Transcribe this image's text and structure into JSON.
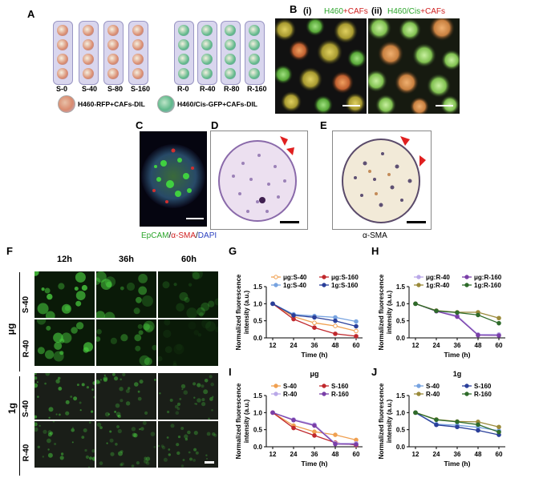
{
  "panels": {
    "A": {
      "label": "A",
      "s_groups": [
        "S-0",
        "S-40",
        "S-80",
        "S-160"
      ],
      "r_groups": [
        "R-0",
        "R-40",
        "R-80",
        "R-160"
      ],
      "legend_s": "H460-RFP+CAFs-DIL",
      "legend_r": "H460/Cis-GFP+CAFs-DIL",
      "colors": {
        "s_sphere": "#d98b6f",
        "r_sphere": "#5fb88a",
        "well": "#d9d6ee"
      }
    },
    "B": {
      "label": "B",
      "sub_i": "(i)",
      "sub_ii": "(ii)",
      "title_i_a": "H460",
      "title_i_plus": "+",
      "title_i_b": "CAFs",
      "title_ii_a": "H460/Cis",
      "title_ii_plus": "+",
      "title_ii_b": "CAFs"
    },
    "C": {
      "label": "C",
      "cap_a": "EpCAM",
      "cap_sep1": "/",
      "cap_b": "α-SMA",
      "cap_sep2": "/",
      "cap_c": "DAPI"
    },
    "D": {
      "label": "D"
    },
    "E": {
      "label": "E",
      "caption": "α-SMA"
    },
    "F": {
      "label": "F",
      "times": [
        "12h",
        "36h",
        "60h"
      ],
      "group_ug": "μg",
      "group_1g": "1g",
      "rows": [
        "S-40",
        "R-40",
        "S-40",
        "R-40"
      ]
    }
  },
  "chart_data": [
    {
      "panel": "G",
      "type": "line",
      "ylabel_1": "Normalized fluorescence",
      "ylabel_2": "intensity (a.u.)",
      "xlabel": "Time (h)",
      "x": [
        12,
        24,
        36,
        48,
        60
      ],
      "ylim": [
        0.0,
        1.5
      ],
      "yticks": [
        "0.0",
        "0.5",
        "1.0",
        "1.5"
      ],
      "xticks": [
        "12",
        "24",
        "36",
        "48",
        "60"
      ],
      "legend": "top",
      "series": [
        {
          "name": "μg:S-40",
          "color": "#f0a050",
          "marker": "circle-open",
          "values": [
            1.0,
            0.62,
            0.44,
            0.35,
            0.2
          ]
        },
        {
          "name": "μg:S-160",
          "color": "#c0282d",
          "marker": "circle",
          "values": [
            1.0,
            0.55,
            0.3,
            0.12,
            0.05
          ]
        },
        {
          "name": "1g:S-40",
          "color": "#77a3e0",
          "marker": "circle",
          "values": [
            1.0,
            0.69,
            0.64,
            0.6,
            0.48
          ]
        },
        {
          "name": "1g:S-160",
          "color": "#2a3f9a",
          "marker": "circle",
          "values": [
            1.0,
            0.66,
            0.6,
            0.5,
            0.34
          ]
        }
      ]
    },
    {
      "panel": "H",
      "type": "line",
      "ylabel_1": "Normalized fluorescence",
      "ylabel_2": "intensity (a.u.)",
      "xlabel": "Time (h)",
      "x": [
        12,
        24,
        36,
        48,
        60
      ],
      "ylim": [
        0.0,
        1.5
      ],
      "yticks": [
        "0.0",
        "0.5",
        "1.0",
        "1.5"
      ],
      "xticks": [
        "12",
        "24",
        "36",
        "48",
        "60"
      ],
      "legend": "top",
      "series": [
        {
          "name": "μg:R-40",
          "color": "#b9a8e8",
          "marker": "circle",
          "values": [
            1.0,
            0.8,
            0.65,
            0.1,
            0.1
          ]
        },
        {
          "name": "μg:R-160",
          "color": "#7a3fa8",
          "marker": "circle",
          "values": [
            1.0,
            0.78,
            0.62,
            0.08,
            0.07
          ]
        },
        {
          "name": "1g:R-40",
          "color": "#9a8a3a",
          "marker": "circle",
          "values": [
            1.0,
            0.8,
            0.75,
            0.75,
            0.58
          ]
        },
        {
          "name": "1g:R-160",
          "color": "#2e6b2a",
          "marker": "circle",
          "values": [
            1.0,
            0.79,
            0.74,
            0.67,
            0.43
          ]
        }
      ]
    },
    {
      "panel": "I",
      "type": "line",
      "title": "μg",
      "ylabel_1": "Normalized fluorescence",
      "ylabel_2": "intensity (a.u.)",
      "xlabel": "Time (h)",
      "x": [
        12,
        24,
        36,
        48,
        60
      ],
      "ylim": [
        0.0,
        1.5
      ],
      "yticks": [
        "0.0",
        "0.5",
        "1.0",
        "1.5"
      ],
      "xticks": [
        "12",
        "24",
        "36",
        "48",
        "60"
      ],
      "legend": "top",
      "series": [
        {
          "name": "S-40",
          "color": "#f0a050",
          "marker": "circle",
          "values": [
            1.0,
            0.62,
            0.44,
            0.35,
            0.2
          ]
        },
        {
          "name": "S-160",
          "color": "#c0282d",
          "marker": "circle",
          "values": [
            1.0,
            0.55,
            0.33,
            0.12,
            0.05
          ]
        },
        {
          "name": "R-40",
          "color": "#b9a8e8",
          "marker": "circle",
          "values": [
            1.0,
            0.8,
            0.65,
            0.1,
            0.1
          ]
        },
        {
          "name": "R-160",
          "color": "#7a3fa8",
          "marker": "circle",
          "values": [
            1.0,
            0.78,
            0.62,
            0.08,
            0.07
          ]
        }
      ]
    },
    {
      "panel": "J",
      "type": "line",
      "title": "1g",
      "ylabel_1": "Normalized fluorescence",
      "ylabel_2": "intensity (a.u.)",
      "xlabel": "Time (h)",
      "x": [
        12,
        24,
        36,
        48,
        60
      ],
      "ylim": [
        0.0,
        1.5
      ],
      "yticks": [
        "0.0",
        "0.5",
        "1.0",
        "1.5"
      ],
      "xticks": [
        "12",
        "24",
        "36",
        "48",
        "60"
      ],
      "legend": "top",
      "series": [
        {
          "name": "S-40",
          "color": "#77a3e0",
          "marker": "circle",
          "values": [
            1.0,
            0.66,
            0.63,
            0.57,
            0.47
          ]
        },
        {
          "name": "S-160",
          "color": "#2a3f9a",
          "marker": "circle",
          "values": [
            1.0,
            0.64,
            0.58,
            0.48,
            0.35
          ]
        },
        {
          "name": "R-40",
          "color": "#9a8a3a",
          "marker": "circle",
          "values": [
            1.0,
            0.8,
            0.74,
            0.73,
            0.58
          ]
        },
        {
          "name": "R-160",
          "color": "#2e6b2a",
          "marker": "circle",
          "values": [
            1.0,
            0.79,
            0.73,
            0.65,
            0.43
          ]
        }
      ]
    }
  ]
}
